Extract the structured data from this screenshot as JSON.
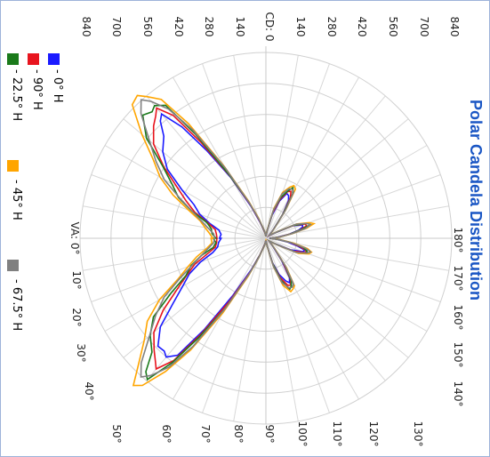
{
  "chart_data": {
    "type": "polar",
    "title": "Polar Candela Distribution",
    "radial_axis_label": "CD: 0",
    "radial_ticks": [
      "840",
      "700",
      "560",
      "420",
      "280",
      "140",
      "140",
      "280",
      "420",
      "560",
      "700",
      "840"
    ],
    "angle_axis_label": "VA: 0°",
    "angle_ticks_lower": [
      "10°",
      "20°",
      "30°",
      "40°",
      "50°",
      "60°",
      "70°",
      "80°",
      "90°",
      "100°",
      "110°",
      "120°",
      "130°"
    ],
    "angle_ticks_upper": [
      "180°",
      "170°",
      "160°",
      "150°",
      "140°"
    ],
    "legend": [
      {
        "label": "- 0° H",
        "color": "#1a1aff"
      },
      {
        "label": "- 90° H",
        "color": "#e8141e"
      },
      {
        "label": "- 22.5° H",
        "color": "#1a7a1a"
      },
      {
        "label": "- 45° H",
        "color": "#ffa500"
      },
      {
        "label": "- 67.5° H",
        "color": "#808080"
      }
    ]
  }
}
